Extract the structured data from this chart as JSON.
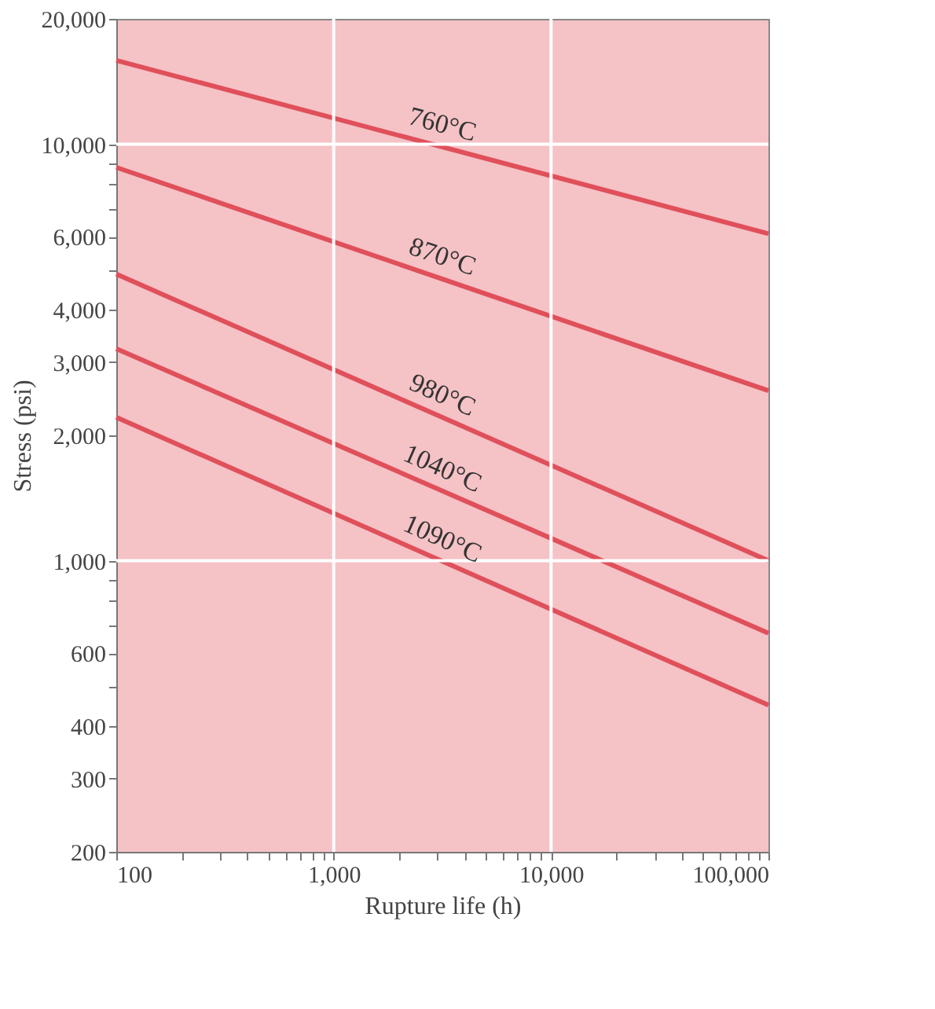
{
  "chart_data": {
    "type": "line",
    "xlabel": "Rupture life (h)",
    "ylabel": "Stress (psi)",
    "log": "xy",
    "grid": true,
    "xlim": [
      100,
      100000
    ],
    "ylim": [
      200,
      20000
    ],
    "xticks": [
      100,
      {
        "value": 200,
        "label": null
      },
      {
        "value": 300,
        "label": null
      },
      {
        "value": 400,
        "label": null
      },
      {
        "value": 500,
        "label": null
      },
      {
        "value": 600,
        "label": null
      },
      {
        "value": 700,
        "label": null
      },
      {
        "value": 800,
        "label": null
      },
      {
        "value": 900,
        "label": null
      },
      {
        "value": 1000,
        "label": "1,000"
      },
      {
        "value": 2000,
        "label": null
      },
      {
        "value": 3000,
        "label": null
      },
      {
        "value": 4000,
        "label": null
      },
      {
        "value": 5000,
        "label": null
      },
      {
        "value": 6000,
        "label": null
      },
      {
        "value": 7000,
        "label": null
      },
      {
        "value": 8000,
        "label": null
      },
      {
        "value": 9000,
        "label": null
      },
      {
        "value": 10000,
        "label": "10,000"
      },
      {
        "value": 20000,
        "label": null
      },
      {
        "value": 30000,
        "label": null
      },
      {
        "value": 40000,
        "label": null
      },
      {
        "value": 50000,
        "label": null
      },
      {
        "value": 60000,
        "label": null
      },
      {
        "value": 70000,
        "label": null
      },
      {
        "value": 80000,
        "label": null
      },
      {
        "value": 90000,
        "label": null
      },
      {
        "value": 100000,
        "label": "100,000"
      }
    ],
    "yticks": [
      200,
      300,
      400,
      {
        "value": 500,
        "label": null
      },
      600,
      {
        "value": 700,
        "label": null
      },
      {
        "value": 800,
        "label": null
      },
      {
        "value": 900,
        "label": null
      },
      {
        "value": 1000,
        "label": "1,000"
      },
      {
        "value": 2000,
        "label": "2,000"
      },
      {
        "value": 3000,
        "label": "3,000"
      },
      {
        "value": 4000,
        "label": "4,000"
      },
      {
        "value": 5000,
        "label": null
      },
      {
        "value": 6000,
        "label": "6,000"
      },
      {
        "value": 7000,
        "label": null
      },
      {
        "value": 8000,
        "label": null
      },
      {
        "value": 9000,
        "label": null
      },
      {
        "value": 10000,
        "label": "10,000"
      },
      {
        "value": 20000,
        "label": "20,000"
      }
    ],
    "x": [
      100,
      100000
    ],
    "series": [
      {
        "name": "760°C",
        "color": "#e0505a",
        "values": [
          15900,
          6100
        ]
      },
      {
        "name": "870°C",
        "color": "#e0505a",
        "values": [
          8800,
          2560
        ]
      },
      {
        "name": "980°C",
        "color": "#e0505a",
        "values": [
          4880,
          1000
        ]
      },
      {
        "name": "1040°C",
        "color": "#e0505a",
        "values": [
          3230,
          670
        ]
      },
      {
        "name": "1090°C",
        "color": "#e0505a",
        "values": [
          2210,
          450
        ]
      }
    ]
  }
}
